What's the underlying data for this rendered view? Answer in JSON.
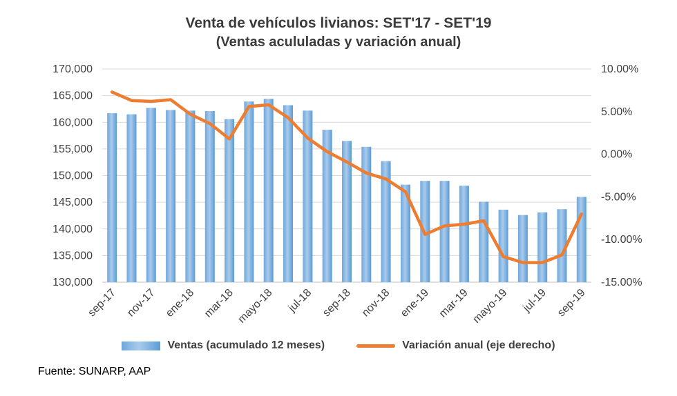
{
  "title": {
    "line1": "Venta de vehículos livianos: SET'17 - SET'19",
    "line2": "(Ventas acululadas y variación anual)"
  },
  "legend": [
    {
      "label": "Ventas (acumulado 12 meses)",
      "type": "bar",
      "color": "#5B9BD5"
    },
    {
      "label": "Variación anual (eje derecho)",
      "type": "line",
      "color": "#ED7D31"
    }
  ],
  "footer": "Fuente: SUNARP, AAP",
  "chart_data": {
    "type": "bar",
    "subtype": "bar+line combo, dual axis",
    "x": [
      "sep-17",
      "oct-17",
      "nov-17",
      "dic-17",
      "ene-18",
      "feb-18",
      "mar-18",
      "abr-18",
      "mayo-18",
      "jun-18",
      "jul-18",
      "ago-18",
      "sep-18",
      "oct-18",
      "nov-18",
      "dic-18",
      "ene-19",
      "feb-19",
      "mar-19",
      "abr-19",
      "mayo-19",
      "jun-19",
      "jul-19",
      "ago-19",
      "sep-19"
    ],
    "x_tick_labels": [
      "sep-17",
      "nov-17",
      "ene-18",
      "mar-18",
      "mayo-18",
      "jul-18",
      "sep-18",
      "nov-18",
      "ene-19",
      "mar-19",
      "mayo-19",
      "jul-19",
      "sep-19"
    ],
    "series": [
      {
        "name": "Ventas (acumulado 12 meses)",
        "type": "bar",
        "axis": "left",
        "color": "#5B9BD5",
        "values": [
          161700,
          161500,
          162700,
          162300,
          162200,
          162100,
          160600,
          163900,
          164400,
          163200,
          162200,
          158600,
          156500,
          155400,
          152700,
          148300,
          149000,
          149000,
          148100,
          145100,
          143600,
          142600,
          143100,
          143700,
          146000
        ]
      },
      {
        "name": "Variación anual (eje derecho)",
        "type": "line",
        "axis": "right",
        "unit": "percent",
        "color": "#ED7D31",
        "values": [
          7.3,
          6.3,
          6.2,
          6.4,
          4.7,
          3.6,
          1.8,
          5.6,
          5.8,
          4.3,
          1.9,
          0.3,
          -0.9,
          -2.2,
          -2.9,
          -4.4,
          -9.4,
          -8.4,
          -8.2,
          -7.8,
          -12.0,
          -12.7,
          -12.7,
          -11.8,
          -7.0
        ]
      }
    ],
    "left_axis": {
      "min": 130000,
      "max": 170000,
      "step": 5000,
      "tick_labels": [
        "170,000",
        "165,000",
        "160,000",
        "155,000",
        "150,000",
        "145,000",
        "140,000",
        "135,000",
        "130,000"
      ]
    },
    "right_axis": {
      "min": -15,
      "max": 10,
      "step": 5,
      "unit": "%",
      "tick_labels": [
        "10.00%",
        "5.00%",
        "0.00%",
        "-5.00%",
        "-10.00%",
        "-15.00%"
      ]
    },
    "grid": true,
    "legend_position": "bottom"
  }
}
